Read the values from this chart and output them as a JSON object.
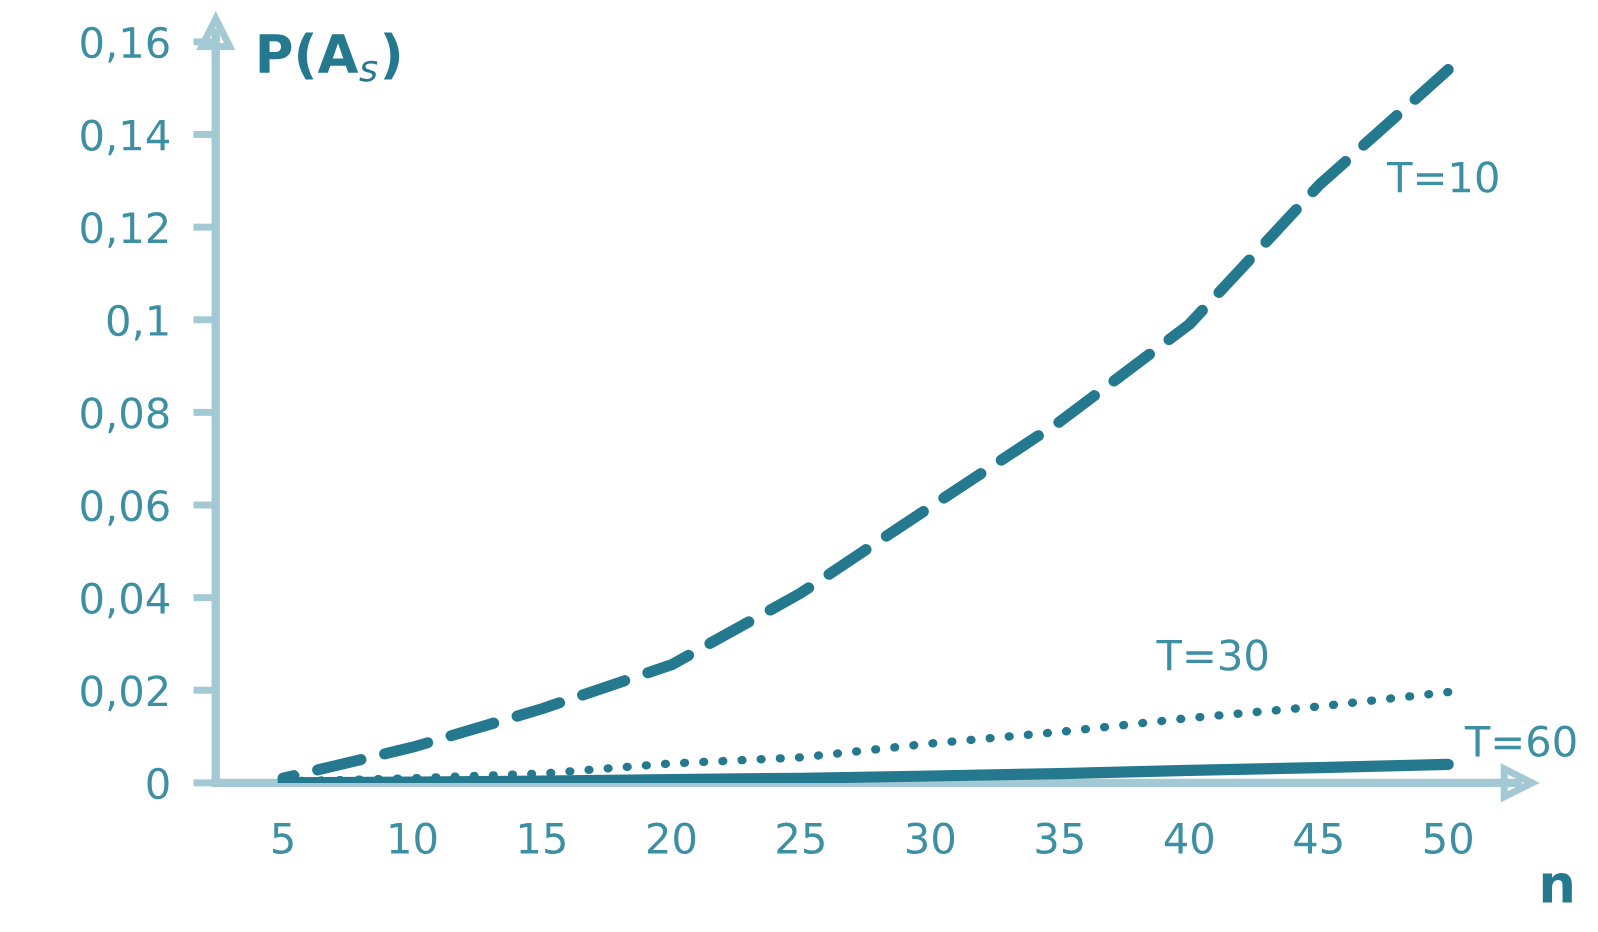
{
  "chart_data": {
    "type": "line",
    "ylabel": "P(A$_{s}$)",
    "xlabel": "n",
    "x": [
      5,
      10,
      15,
      20,
      25,
      30,
      35,
      40,
      45,
      50
    ],
    "series": [
      {
        "name": "T=10",
        "color": "#25798f",
        "line_style": "dashed",
        "values": [
          0.001,
          0.0077,
          0.016,
          0.0255,
          0.041,
          0.0596,
          0.078,
          0.099,
          0.129,
          0.154
        ]
      },
      {
        "name": "T=30",
        "color": "#25798f",
        "line_style": "dotted",
        "values": [
          0.0003,
          0.001,
          0.002,
          0.0042,
          0.0055,
          0.0085,
          0.011,
          0.014,
          0.0165,
          0.0196
        ]
      },
      {
        "name": "T=60",
        "color": "#25798f",
        "line_style": "solid",
        "values": [
          0,
          0.0002,
          0.0004,
          0.0007,
          0.001,
          0.0015,
          0.002,
          0.0027,
          0.0033,
          0.004
        ]
      }
    ],
    "xlim": [
      2.4,
      52.7
    ],
    "ylim": [
      0,
      0.162
    ],
    "xticks": [
      5,
      10,
      15,
      20,
      25,
      30,
      35,
      40,
      45,
      50
    ],
    "yticks": [
      0,
      {
        "value": 0.02,
        "label": "0,02"
      },
      {
        "value": 0.04,
        "label": "0,04"
      },
      {
        "value": 0.06,
        "label": "0,06"
      },
      {
        "value": 0.08,
        "label": "0,08"
      },
      {
        "value": 0.1,
        "label": "0,1"
      },
      {
        "value": 0.12,
        "label": "0,12"
      },
      {
        "value": 0.14,
        "label": "0,14"
      },
      {
        "value": 0.16,
        "label": "0,16"
      }
    ],
    "grid": false,
    "legend": false,
    "marker": "none"
  }
}
